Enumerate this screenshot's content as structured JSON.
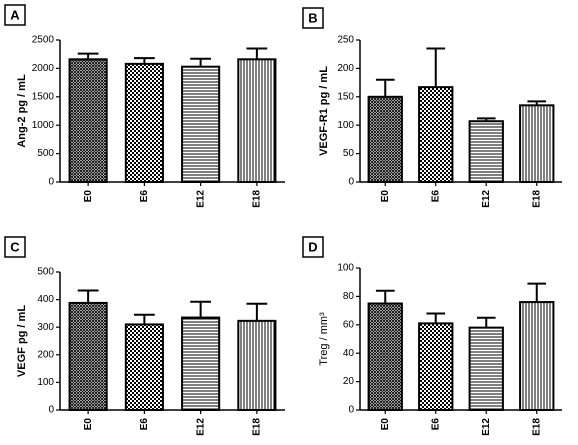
{
  "chart_data": [
    {
      "type": "bar",
      "label": "A",
      "ylabel": "Ang-2 pg / mL",
      "categories": [
        "E0",
        "E6",
        "E12",
        "E18"
      ],
      "values": [
        2160,
        2080,
        2030,
        2160
      ],
      "errors": [
        100,
        100,
        140,
        190
      ],
      "ylim": [
        0,
        2500
      ],
      "yticks": [
        0,
        500,
        1000,
        1500,
        2000,
        2500
      ]
    },
    {
      "type": "bar",
      "label": "B",
      "ylabel": "VEGF-R1 pg / mL",
      "categories": [
        "E0",
        "E6",
        "E12",
        "E18"
      ],
      "values": [
        150,
        167,
        107,
        135
      ],
      "errors": [
        30,
        68,
        5,
        7
      ],
      "ylim": [
        0,
        250
      ],
      "yticks": [
        0,
        50,
        100,
        150,
        200,
        250
      ]
    },
    {
      "type": "bar",
      "label": "C",
      "ylabel": "VEGF pg / mL",
      "categories": [
        "E0",
        "E6",
        "E12",
        "E18"
      ],
      "values": [
        388,
        310,
        335,
        323
      ],
      "errors": [
        45,
        35,
        57,
        62
      ],
      "ylim": [
        0,
        500
      ],
      "yticks": [
        0,
        100,
        200,
        300,
        400,
        500
      ]
    },
    {
      "type": "bar",
      "label": "D",
      "ylabel": "Treg / mm³",
      "categories": [
        "E0",
        "E6",
        "E12",
        "E18"
      ],
      "values": [
        75,
        61,
        58,
        76
      ],
      "errors": [
        9,
        7,
        7,
        13
      ],
      "ylim": [
        0,
        100
      ],
      "yticks": [
        0,
        20,
        40,
        60,
        80,
        100
      ]
    }
  ]
}
